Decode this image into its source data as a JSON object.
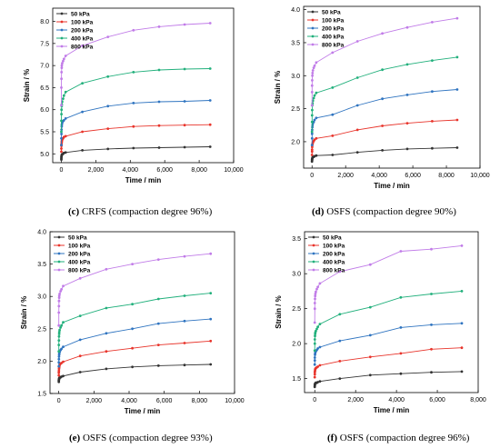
{
  "chart_data": [
    {
      "type": "line",
      "caption_letter": "(c)",
      "caption_text": " CRFS (compaction degree 96%)",
      "xlabel": "Time / min",
      "ylabel": "Strain / %",
      "xlim": [
        -500,
        10000
      ],
      "ylim": [
        4.8,
        8.3
      ],
      "xticks": [
        0,
        2000,
        4000,
        6000,
        8000,
        10000
      ],
      "xtick_labels": [
        "0",
        "2,000",
        "4,000",
        "6,000",
        "8,000",
        "10,000"
      ],
      "yticks": [
        5.0,
        5.5,
        6.0,
        6.5,
        7.0,
        7.5,
        8.0
      ],
      "ytick_labels": [
        "5.0",
        "5.5",
        "6.0",
        "6.5",
        "7.0",
        "7.5",
        "8.0"
      ],
      "legend": "top-left",
      "x": [
        0,
        5,
        10,
        20,
        40,
        60,
        100,
        200,
        300,
        500,
        1440,
        2880,
        4320,
        5760,
        7200,
        8640
      ],
      "series": [
        {
          "name": "50 kPa",
          "color": "#333333",
          "values": [
            4.87,
            4.9,
            4.93,
            4.95,
            4.97,
            4.98,
            4.99,
            5.0,
            5.02,
            5.03,
            5.08,
            5.11,
            5.13,
            5.14,
            5.15,
            5.16
          ]
        },
        {
          "name": "100 kPa",
          "color": "#e8352c",
          "values": [
            5.05,
            5.12,
            5.18,
            5.22,
            5.26,
            5.29,
            5.32,
            5.35,
            5.38,
            5.4,
            5.5,
            5.57,
            5.62,
            5.64,
            5.65,
            5.66
          ]
        },
        {
          "name": "200 kPa",
          "color": "#2f74c0",
          "values": [
            5.2,
            5.35,
            5.45,
            5.55,
            5.62,
            5.66,
            5.7,
            5.74,
            5.76,
            5.8,
            5.95,
            6.08,
            6.15,
            6.18,
            6.19,
            6.21
          ]
        },
        {
          "name": "400 kPa",
          "color": "#22b07c",
          "values": [
            5.5,
            5.75,
            5.9,
            6.0,
            6.08,
            6.12,
            6.18,
            6.25,
            6.32,
            6.4,
            6.6,
            6.75,
            6.85,
            6.9,
            6.92,
            6.93
          ]
        },
        {
          "name": "800 kPa",
          "color": "#c17ce8",
          "values": [
            6.1,
            6.5,
            6.7,
            6.85,
            6.95,
            7.0,
            7.05,
            7.1,
            7.15,
            7.22,
            7.45,
            7.65,
            7.8,
            7.88,
            7.93,
            7.96
          ]
        }
      ]
    },
    {
      "type": "line",
      "caption_letter": "(d)",
      "caption_text": " OSFS (compaction degree 90%)",
      "xlabel": "Time / min",
      "ylabel": "Strain / %",
      "xlim": [
        -500,
        10000
      ],
      "ylim": [
        1.6,
        4.05
      ],
      "xticks": [
        0,
        2000,
        4000,
        6000,
        8000,
        10000
      ],
      "xtick_labels": [
        "0",
        "2,000",
        "4,000",
        "6,000",
        "8,000",
        "10,000"
      ],
      "yticks": [
        2.0,
        2.5,
        3.0,
        3.5,
        4.0
      ],
      "ytick_labels": [
        "2.0",
        "2.5",
        "3.0",
        "3.5",
        "4.0"
      ],
      "legend": "top-left",
      "x": [
        0,
        5,
        10,
        20,
        40,
        60,
        100,
        200,
        300,
        500,
        1440,
        2880,
        4320,
        5760,
        7200,
        8640
      ],
      "series": [
        {
          "name": "50 kPa",
          "color": "#333333",
          "values": [
            1.7,
            1.72,
            1.73,
            1.74,
            1.75,
            1.76,
            1.77,
            1.77,
            1.78,
            1.79,
            1.8,
            1.84,
            1.87,
            1.89,
            1.9,
            1.91
          ]
        },
        {
          "name": "100 kPa",
          "color": "#e8352c",
          "values": [
            1.8,
            1.85,
            1.88,
            1.92,
            1.95,
            1.97,
            1.99,
            2.01,
            2.03,
            2.05,
            2.09,
            2.18,
            2.24,
            2.28,
            2.31,
            2.33
          ]
        },
        {
          "name": "200 kPa",
          "color": "#2f74c0",
          "values": [
            1.95,
            2.05,
            2.12,
            2.18,
            2.22,
            2.25,
            2.28,
            2.3,
            2.33,
            2.36,
            2.41,
            2.55,
            2.65,
            2.71,
            2.76,
            2.79
          ]
        },
        {
          "name": "400 kPa",
          "color": "#22b07c",
          "values": [
            2.15,
            2.3,
            2.4,
            2.48,
            2.55,
            2.58,
            2.62,
            2.66,
            2.7,
            2.74,
            2.82,
            2.97,
            3.09,
            3.17,
            3.23,
            3.28
          ]
        },
        {
          "name": "800 kPa",
          "color": "#c17ce8",
          "values": [
            2.55,
            2.75,
            2.85,
            2.93,
            3.0,
            3.04,
            3.08,
            3.12,
            3.15,
            3.2,
            3.35,
            3.52,
            3.64,
            3.73,
            3.81,
            3.87
          ]
        }
      ]
    },
    {
      "type": "line",
      "caption_letter": "(e)",
      "caption_text": " OSFS (compaction degree 93%)",
      "xlabel": "Time / min",
      "ylabel": "Strain / %",
      "xlim": [
        -500,
        10000
      ],
      "ylim": [
        1.5,
        4.0
      ],
      "xticks": [
        0,
        2000,
        4000,
        6000,
        8000,
        10000
      ],
      "xtick_labels": [
        "0",
        "2,000",
        "4,000",
        "6,000",
        "8,000",
        "10,000"
      ],
      "yticks": [
        1.5,
        2.0,
        2.5,
        3.0,
        3.5,
        4.0
      ],
      "ytick_labels": [
        "1.5",
        "2.0",
        "2.5",
        "3.0",
        "3.5",
        "4.0"
      ],
      "legend": "top-left",
      "x": [
        0,
        5,
        10,
        20,
        40,
        60,
        100,
        200,
        300,
        500,
        1440,
        2880,
        4320,
        5760,
        7200,
        8640
      ],
      "series": [
        {
          "name": "50 kPa",
          "color": "#333333",
          "values": [
            1.68,
            1.7,
            1.71,
            1.72,
            1.73,
            1.74,
            1.74,
            1.75,
            1.76,
            1.77,
            1.83,
            1.88,
            1.91,
            1.93,
            1.94,
            1.95
          ]
        },
        {
          "name": "100 kPa",
          "color": "#e8352c",
          "values": [
            1.78,
            1.82,
            1.85,
            1.88,
            1.9,
            1.92,
            1.94,
            1.96,
            1.97,
            1.99,
            2.08,
            2.15,
            2.2,
            2.25,
            2.28,
            2.31
          ]
        },
        {
          "name": "200 kPa",
          "color": "#2f74c0",
          "values": [
            1.92,
            1.98,
            2.03,
            2.07,
            2.1,
            2.12,
            2.14,
            2.17,
            2.19,
            2.22,
            2.33,
            2.43,
            2.5,
            2.58,
            2.62,
            2.65
          ]
        },
        {
          "name": "400 kPa",
          "color": "#22b07c",
          "values": [
            2.15,
            2.25,
            2.32,
            2.38,
            2.42,
            2.45,
            2.48,
            2.52,
            2.55,
            2.6,
            2.7,
            2.82,
            2.88,
            2.96,
            3.01,
            3.05
          ]
        },
        {
          "name": "800 kPa",
          "color": "#c17ce8",
          "values": [
            2.55,
            2.75,
            2.85,
            2.93,
            2.98,
            3.01,
            3.04,
            3.08,
            3.11,
            3.16,
            3.28,
            3.42,
            3.5,
            3.57,
            3.62,
            3.66
          ]
        }
      ]
    },
    {
      "type": "line",
      "caption_letter": "(f)",
      "caption_text": " OSFS (compaction degree 96%)",
      "xlabel": "Time / min",
      "ylabel": "Strain / %",
      "xlim": [
        -500,
        8000
      ],
      "ylim": [
        1.3,
        3.6
      ],
      "xticks": [
        0,
        2000,
        4000,
        6000,
        8000
      ],
      "xtick_labels": [
        "0",
        "2,000",
        "4,000",
        "6,000",
        "8,000"
      ],
      "yticks": [
        1.5,
        2.0,
        2.5,
        3.0,
        3.5
      ],
      "ytick_labels": [
        "1.5",
        "2.0",
        "2.5",
        "3.0",
        "3.5"
      ],
      "legend": "top-left",
      "x": [
        0,
        5,
        10,
        20,
        40,
        60,
        100,
        200,
        300,
        500,
        1440,
        2880,
        4320,
        5760,
        7200
      ],
      "series": [
        {
          "name": "50 kPa",
          "color": "#333333",
          "values": [
            1.38,
            1.4,
            1.41,
            1.42,
            1.43,
            1.43,
            1.44,
            1.44,
            1.45,
            1.46,
            1.5,
            1.55,
            1.57,
            1.59,
            1.6
          ]
        },
        {
          "name": "100 kPa",
          "color": "#e8352c",
          "values": [
            1.52,
            1.56,
            1.59,
            1.61,
            1.63,
            1.64,
            1.65,
            1.66,
            1.67,
            1.69,
            1.75,
            1.81,
            1.86,
            1.92,
            1.94
          ]
        },
        {
          "name": "200 kPa",
          "color": "#2f74c0",
          "values": [
            1.7,
            1.76,
            1.8,
            1.84,
            1.86,
            1.88,
            1.89,
            1.91,
            1.93,
            1.95,
            2.04,
            2.12,
            2.23,
            2.27,
            2.29
          ]
        },
        {
          "name": "400 kPa",
          "color": "#22b07c",
          "values": [
            1.9,
            2.0,
            2.06,
            2.11,
            2.14,
            2.16,
            2.18,
            2.21,
            2.24,
            2.28,
            2.42,
            2.52,
            2.66,
            2.71,
            2.75
          ]
        },
        {
          "name": "800 kPa",
          "color": "#c17ce8",
          "values": [
            2.3,
            2.5,
            2.58,
            2.64,
            2.68,
            2.71,
            2.74,
            2.78,
            2.81,
            2.86,
            3.03,
            3.13,
            3.32,
            3.35,
            3.4
          ]
        }
      ]
    }
  ]
}
